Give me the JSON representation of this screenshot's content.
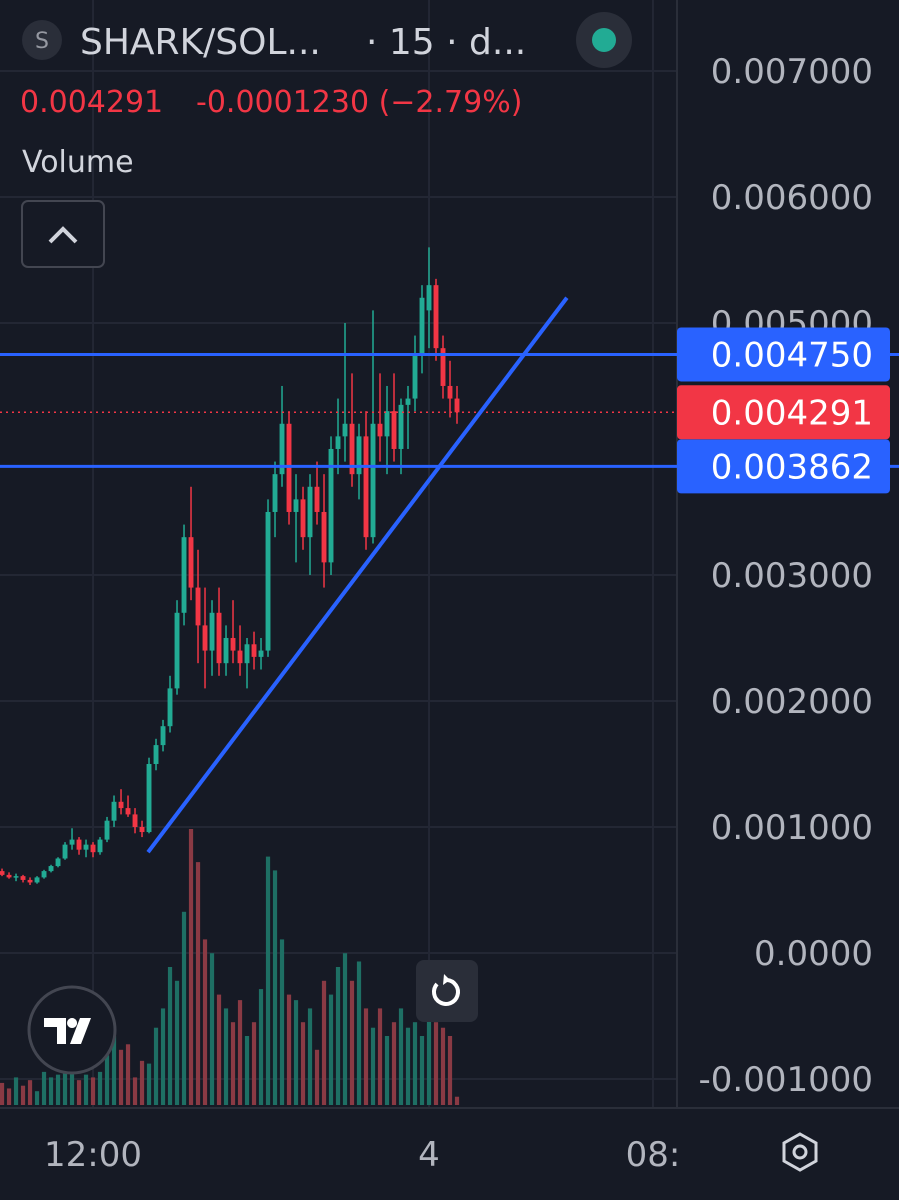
{
  "symbol_icon": "S",
  "chart_data": {
    "type": "candlestick",
    "title": "SHARK/SOL...",
    "interval": "· 15 · d...",
    "legend_price": "0.004291",
    "legend_change": "-0.0001230 (−2.79%)",
    "volume_label": "Volume",
    "up_color": "#22ab94",
    "down_color": "#f23645",
    "volume_up_color": "#1e6f64",
    "volume_down_color": "#8a3a44",
    "grid": true,
    "x": [
      -13,
      -12,
      -11,
      -10,
      -9,
      -8,
      -7,
      -6,
      -5,
      -4,
      -3,
      -2,
      -1,
      0,
      1,
      2,
      3,
      4,
      5,
      6,
      7,
      8,
      9,
      10,
      11,
      12,
      13,
      14,
      15,
      16,
      17,
      18,
      19,
      20,
      21,
      22,
      23,
      24,
      25,
      26,
      27,
      28,
      29,
      30,
      31,
      32,
      33,
      34,
      35,
      36,
      37,
      38,
      39,
      40,
      41,
      42,
      43,
      44,
      45,
      46,
      47,
      48,
      49,
      50,
      51,
      52
    ],
    "ohlc": [
      [
        0.00065,
        0.00067,
        0.00061,
        0.00062
      ],
      [
        0.00062,
        0.00064,
        0.00059,
        0.0006
      ],
      [
        0.0006,
        0.00063,
        0.00057,
        0.00061
      ],
      [
        0.00061,
        0.00062,
        0.00056,
        0.00058
      ],
      [
        0.00058,
        0.0006,
        0.00054,
        0.00056
      ],
      [
        0.00056,
        0.00061,
        0.00055,
        0.0006
      ],
      [
        0.0006,
        0.00066,
        0.00059,
        0.00065
      ],
      [
        0.00065,
        0.0007,
        0.00064,
        0.00069
      ],
      [
        0.00069,
        0.00076,
        0.00068,
        0.00075
      ],
      [
        0.00075,
        0.00088,
        0.00074,
        0.00086
      ],
      [
        0.00086,
        0.00099,
        0.00082,
        0.0009
      ],
      [
        0.0009,
        0.00092,
        0.00078,
        0.00082
      ],
      [
        0.00082,
        0.0009,
        0.00076,
        0.00086
      ],
      [
        0.00086,
        0.00088,
        0.00076,
        0.0008
      ],
      [
        0.0008,
        0.00092,
        0.00078,
        0.0009
      ],
      [
        0.0009,
        0.00108,
        0.00088,
        0.00105
      ],
      [
        0.00105,
        0.00125,
        0.001,
        0.0012
      ],
      [
        0.0012,
        0.0013,
        0.0011,
        0.00115
      ],
      [
        0.00115,
        0.00125,
        0.00108,
        0.0011
      ],
      [
        0.0011,
        0.00115,
        0.00095,
        0.001
      ],
      [
        0.001,
        0.00105,
        0.00092,
        0.00096
      ],
      [
        0.00096,
        0.00155,
        0.00095,
        0.0015
      ],
      [
        0.0015,
        0.0017,
        0.00145,
        0.00165
      ],
      [
        0.00165,
        0.00185,
        0.0016,
        0.0018
      ],
      [
        0.0018,
        0.0022,
        0.00175,
        0.0021
      ],
      [
        0.0021,
        0.0028,
        0.00205,
        0.0027
      ],
      [
        0.0027,
        0.0034,
        0.0026,
        0.0033
      ],
      [
        0.0033,
        0.0037,
        0.0028,
        0.0029
      ],
      [
        0.0029,
        0.0032,
        0.0023,
        0.0026
      ],
      [
        0.0026,
        0.0029,
        0.0021,
        0.0024
      ],
      [
        0.0024,
        0.0028,
        0.0022,
        0.0027
      ],
      [
        0.0027,
        0.0029,
        0.0022,
        0.0023
      ],
      [
        0.0023,
        0.0026,
        0.0022,
        0.0025
      ],
      [
        0.0025,
        0.0028,
        0.0023,
        0.0024
      ],
      [
        0.0024,
        0.0026,
        0.0022,
        0.0023
      ],
      [
        0.0023,
        0.0025,
        0.0021,
        0.00245
      ],
      [
        0.00245,
        0.00255,
        0.00225,
        0.00235
      ],
      [
        0.00235,
        0.0025,
        0.00225,
        0.0024
      ],
      [
        0.0024,
        0.0036,
        0.00235,
        0.0035
      ],
      [
        0.0035,
        0.0039,
        0.0033,
        0.0038
      ],
      [
        0.0038,
        0.0045,
        0.0037,
        0.0042
      ],
      [
        0.0042,
        0.0043,
        0.0034,
        0.0035
      ],
      [
        0.0035,
        0.0038,
        0.0031,
        0.0036
      ],
      [
        0.0036,
        0.0037,
        0.0032,
        0.0033
      ],
      [
        0.0033,
        0.0038,
        0.003,
        0.0037
      ],
      [
        0.0037,
        0.0039,
        0.0034,
        0.0035
      ],
      [
        0.0035,
        0.0038,
        0.0029,
        0.0031
      ],
      [
        0.0031,
        0.0041,
        0.003,
        0.004
      ],
      [
        0.004,
        0.0044,
        0.0038,
        0.0041
      ],
      [
        0.0041,
        0.005,
        0.0039,
        0.0042
      ],
      [
        0.0042,
        0.0046,
        0.0037,
        0.0038
      ],
      [
        0.0038,
        0.0042,
        0.0036,
        0.0041
      ],
      [
        0.0041,
        0.0043,
        0.0032,
        0.0033
      ],
      [
        0.0033,
        0.0051,
        0.00325,
        0.0042
      ],
      [
        0.0042,
        0.0046,
        0.0039,
        0.0041
      ],
      [
        0.0041,
        0.0045,
        0.0038,
        0.0043
      ],
      [
        0.0043,
        0.0046,
        0.0039,
        0.004
      ],
      [
        0.004,
        0.0044,
        0.0038,
        0.00435
      ],
      [
        0.00435,
        0.0045,
        0.004,
        0.0044
      ],
      [
        0.0044,
        0.0049,
        0.0043,
        0.00475
      ],
      [
        0.00475,
        0.0053,
        0.0046,
        0.0052
      ],
      [
        0.0051,
        0.0056,
        0.0048,
        0.0053
      ],
      [
        0.0053,
        0.00535,
        0.0047,
        0.0048
      ],
      [
        0.0048,
        0.0049,
        0.0044,
        0.0045
      ],
      [
        0.0045,
        0.0047,
        0.00425,
        0.0044
      ],
      [
        0.0044,
        0.0045,
        0.0042,
        0.004291
      ]
    ],
    "volume": [
      8,
      6,
      10,
      7,
      9,
      5,
      12,
      10,
      11,
      15,
      14,
      9,
      11,
      10,
      12,
      18,
      25,
      20,
      22,
      10,
      16,
      15,
      28,
      35,
      50,
      45,
      70,
      100,
      88,
      60,
      55,
      40,
      35,
      30,
      38,
      25,
      30,
      42,
      90,
      85,
      60,
      40,
      38,
      30,
      35,
      20,
      45,
      40,
      50,
      55,
      45,
      52,
      35,
      28,
      35,
      25,
      30,
      35,
      28,
      30,
      25,
      35,
      30,
      28,
      25,
      3
    ],
    "xlim": [
      -13.29,
      83.43
    ],
    "xticks": [
      {
        "value": 0,
        "label": "12:00"
      },
      {
        "value": 48,
        "label": "4"
      },
      {
        "value": 80,
        "label": "08:"
      }
    ],
    "ylim": [
      0.007563,
      -0.00123
    ],
    "yticks": [
      {
        "value": 0.007,
        "label": "0.007000"
      },
      {
        "value": 0.006,
        "label": "0.006000"
      },
      {
        "value": 0.005,
        "label": "0.005000"
      },
      {
        "value": 0.003,
        "label": "0.003000"
      },
      {
        "value": 0.002,
        "label": "0.002000"
      },
      {
        "value": 0.001,
        "label": "0.001000"
      },
      {
        "value": 0,
        "label": "0.0000"
      },
      {
        "value": -0.001,
        "label": "-0.001000"
      }
    ],
    "hlines": [
      {
        "value": 0.00475,
        "label": "0.004750",
        "color": "#2962ff"
      },
      {
        "value": 0.003862,
        "label": "0.003862",
        "color": "#2962ff"
      }
    ],
    "last_price": {
      "value": 0.004291,
      "label": "0.004291",
      "color": "#f23645"
    },
    "trendline": {
      "x": [
        7.86,
        67.7
      ],
      "y": [
        0.0008,
        0.0052
      ],
      "color": "#2962ff"
    }
  }
}
